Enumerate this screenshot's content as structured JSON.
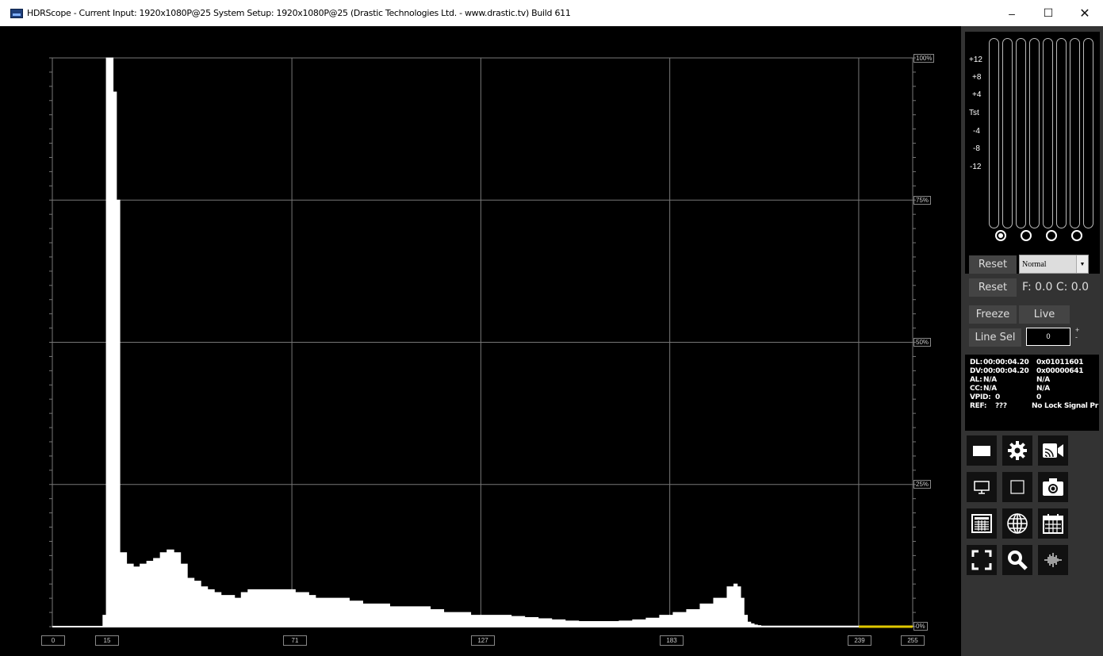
{
  "window": {
    "title": "HDRScope -  Current Input: 1920x1080P@25  System Setup: 1920x1080P@25     (Drastic Technologies Ltd. - www.drastic.tv) Build 611",
    "minimize_glyph": "–",
    "maximize_glyph": "☐",
    "close_glyph": "✕"
  },
  "histogram": {
    "percent_labels": [
      "100%",
      "75%",
      "50%",
      "25%",
      "0%"
    ],
    "x_labels": [
      "0",
      "15",
      "71",
      "127",
      "183",
      "239",
      "255"
    ]
  },
  "chart_data": {
    "type": "area",
    "xlabel": "",
    "ylabel": "",
    "xlim": [
      0,
      255
    ],
    "ylim": [
      0,
      100
    ],
    "grid": true,
    "x": [
      0,
      14,
      15,
      16,
      17,
      18,
      19,
      20,
      22,
      24,
      26,
      28,
      30,
      32,
      34,
      36,
      38,
      40,
      42,
      44,
      46,
      48,
      50,
      52,
      54,
      56,
      58,
      60,
      62,
      64,
      66,
      68,
      70,
      72,
      74,
      76,
      78,
      80,
      84,
      88,
      92,
      96,
      100,
      104,
      108,
      112,
      116,
      120,
      124,
      128,
      132,
      136,
      140,
      144,
      148,
      152,
      156,
      160,
      164,
      168,
      172,
      176,
      180,
      184,
      188,
      192,
      196,
      200,
      202,
      203,
      204,
      205,
      206,
      207,
      208,
      209,
      210,
      212,
      220,
      230,
      239,
      255
    ],
    "y": [
      0,
      0,
      2,
      100,
      100,
      94,
      75,
      13,
      11,
      10.5,
      11,
      11.5,
      12,
      13,
      13.5,
      13,
      11,
      8.5,
      8,
      7,
      6.5,
      6,
      5.5,
      5.5,
      5,
      6,
      6.5,
      6.5,
      6.5,
      6.5,
      6.5,
      6.5,
      6.5,
      6,
      6,
      5.5,
      5,
      5,
      5,
      4.5,
      4,
      4,
      3.5,
      3.5,
      3.5,
      3,
      2.5,
      2.5,
      2,
      2,
      2,
      1.8,
      1.6,
      1.4,
      1.2,
      1,
      0.9,
      0.9,
      0.9,
      1,
      1.2,
      1.5,
      2,
      2.5,
      3,
      4,
      5,
      7,
      7.5,
      7,
      5,
      2,
      0.8,
      0.5,
      0.3,
      0.2,
      0.1,
      0.1,
      0.1,
      0.1,
      0.1,
      0.1
    ]
  },
  "meters": {
    "db_labels": [
      "+12",
      "+8",
      "+4",
      "Tst",
      "-4",
      "-8",
      "-12"
    ],
    "bar_count": 8,
    "channel_radios": [
      true,
      false,
      false,
      false
    ]
  },
  "controls": {
    "reset1_label": "Reset",
    "mode_value": "Normal",
    "reset2_label": "Reset",
    "fc_readout": "F: 0.0  C: 0.0",
    "freeze_label": "Freeze",
    "live_label": "Live",
    "linesel_label": "Line Sel",
    "line_value": "0",
    "plus": "+",
    "minus": "-"
  },
  "info": [
    [
      "DL:",
      "00:00:04.20",
      "0x01011601"
    ],
    [
      "DV:",
      "00:00:04.20",
      "0x00000641"
    ],
    [
      "AL:",
      "N/A",
      "N/A"
    ],
    [
      "CC:",
      "N/A",
      "N/A"
    ],
    [
      "VPID:",
      "0",
      "0"
    ],
    [
      "REF:",
      "???",
      "No Lock Signal Pr"
    ]
  ],
  "tools": [
    "display-mode-icon",
    "gear-icon",
    "cast-icon",
    "monitor-icon",
    "square-icon",
    "camera-icon",
    "table-icon",
    "globe-icon",
    "calendar-icon",
    "fullscreen-icon",
    "zoom-icon",
    "audio-wave-icon"
  ],
  "colors": {
    "accent_yellow": "#e0c800",
    "panel_bg": "#333333"
  }
}
